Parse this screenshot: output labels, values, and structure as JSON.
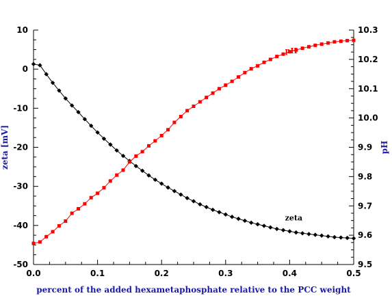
{
  "chart_data": {
    "type": "line",
    "xlabel": "percent of the added hexametaphosphate relative to the PCC weight",
    "ylabel_left": "zeta [mV]",
    "ylabel_right": "pH",
    "xlim": [
      0,
      0.5
    ],
    "ylim_left": [
      -50,
      10
    ],
    "ylim_right": [
      9.5,
      10.3
    ],
    "x_ticks": [
      "0.0",
      "0.1",
      "0.2",
      "0.3",
      "0.4",
      "0.5"
    ],
    "y_left_ticks": [
      "10",
      "0",
      "-10",
      "-20",
      "-30",
      "-40",
      "-50"
    ],
    "y_right_ticks": [
      "10.3",
      "10.2",
      "10.1",
      "10.0",
      "9.9",
      "9.8",
      "9.7",
      "9.6",
      "9.5"
    ],
    "grid": false,
    "colors": {
      "axis_title": "#1a1aa6",
      "ph": "#ff0000",
      "zeta": "#000000"
    },
    "series": [
      {
        "name": "zeta",
        "axis": "left",
        "marker": "diamond",
        "label_position": {
          "x": 0.38,
          "y": -38
        },
        "points": [
          [
            0.0,
            1.3
          ],
          [
            0.01,
            1.0
          ],
          [
            0.02,
            -1.3
          ],
          [
            0.03,
            -3.5
          ],
          [
            0.04,
            -5.5
          ],
          [
            0.05,
            -7.5
          ],
          [
            0.06,
            -9.3
          ],
          [
            0.07,
            -11.0
          ],
          [
            0.08,
            -12.8
          ],
          [
            0.09,
            -14.5
          ],
          [
            0.1,
            -16.2
          ],
          [
            0.11,
            -17.8
          ],
          [
            0.12,
            -19.3
          ],
          [
            0.13,
            -20.8
          ],
          [
            0.14,
            -22.2
          ],
          [
            0.15,
            -23.5
          ],
          [
            0.16,
            -24.8
          ],
          [
            0.17,
            -26.0
          ],
          [
            0.18,
            -27.2
          ],
          [
            0.19,
            -28.3
          ],
          [
            0.2,
            -29.3
          ],
          [
            0.21,
            -30.3
          ],
          [
            0.22,
            -31.2
          ],
          [
            0.23,
            -32.1
          ],
          [
            0.24,
            -33.0
          ],
          [
            0.25,
            -33.8
          ],
          [
            0.26,
            -34.6
          ],
          [
            0.27,
            -35.3
          ],
          [
            0.28,
            -36.0
          ],
          [
            0.29,
            -36.6
          ],
          [
            0.3,
            -37.2
          ],
          [
            0.31,
            -37.8
          ],
          [
            0.32,
            -38.3
          ],
          [
            0.33,
            -38.8
          ],
          [
            0.34,
            -39.3
          ],
          [
            0.35,
            -39.7
          ],
          [
            0.36,
            -40.1
          ],
          [
            0.37,
            -40.5
          ],
          [
            0.38,
            -40.9
          ],
          [
            0.39,
            -41.2
          ],
          [
            0.4,
            -41.5
          ],
          [
            0.41,
            -41.8
          ],
          [
            0.42,
            -42.0
          ],
          [
            0.43,
            -42.2
          ],
          [
            0.44,
            -42.4
          ],
          [
            0.45,
            -42.6
          ],
          [
            0.46,
            -42.8
          ],
          [
            0.47,
            -43.0
          ],
          [
            0.48,
            -43.1
          ],
          [
            0.49,
            -43.2
          ],
          [
            0.5,
            -43.3
          ]
        ]
      },
      {
        "name": "pH",
        "axis": "right",
        "marker": "square",
        "label_position": {
          "x": 0.38,
          "y": 10.23
        },
        "points": [
          [
            0.0,
            9.572
          ],
          [
            0.01,
            9.577
          ],
          [
            0.02,
            9.595
          ],
          [
            0.03,
            9.612
          ],
          [
            0.04,
            9.632
          ],
          [
            0.05,
            9.648
          ],
          [
            0.06,
            9.675
          ],
          [
            0.07,
            9.69
          ],
          [
            0.08,
            9.707
          ],
          [
            0.09,
            9.728
          ],
          [
            0.1,
            9.743
          ],
          [
            0.11,
            9.762
          ],
          [
            0.12,
            9.785
          ],
          [
            0.13,
            9.805
          ],
          [
            0.14,
            9.822
          ],
          [
            0.15,
            9.85
          ],
          [
            0.16,
            9.87
          ],
          [
            0.17,
            9.885
          ],
          [
            0.18,
            9.905
          ],
          [
            0.19,
            9.922
          ],
          [
            0.2,
            9.94
          ],
          [
            0.21,
            9.96
          ],
          [
            0.22,
            9.985
          ],
          [
            0.23,
            10.005
          ],
          [
            0.24,
            10.025
          ],
          [
            0.25,
            10.04
          ],
          [
            0.26,
            10.055
          ],
          [
            0.27,
            10.07
          ],
          [
            0.28,
            10.085
          ],
          [
            0.29,
            10.1
          ],
          [
            0.3,
            10.112
          ],
          [
            0.31,
            10.125
          ],
          [
            0.32,
            10.14
          ],
          [
            0.33,
            10.155
          ],
          [
            0.34,
            10.168
          ],
          [
            0.35,
            10.178
          ],
          [
            0.36,
            10.19
          ],
          [
            0.37,
            10.2
          ],
          [
            0.38,
            10.21
          ],
          [
            0.39,
            10.218
          ],
          [
            0.4,
            10.226
          ],
          [
            0.41,
            10.232
          ],
          [
            0.42,
            10.238
          ],
          [
            0.43,
            10.243
          ],
          [
            0.44,
            10.248
          ],
          [
            0.45,
            10.252
          ],
          [
            0.46,
            10.256
          ],
          [
            0.47,
            10.26
          ],
          [
            0.48,
            10.262
          ],
          [
            0.49,
            10.264
          ],
          [
            0.5,
            10.265
          ]
        ]
      }
    ]
  }
}
